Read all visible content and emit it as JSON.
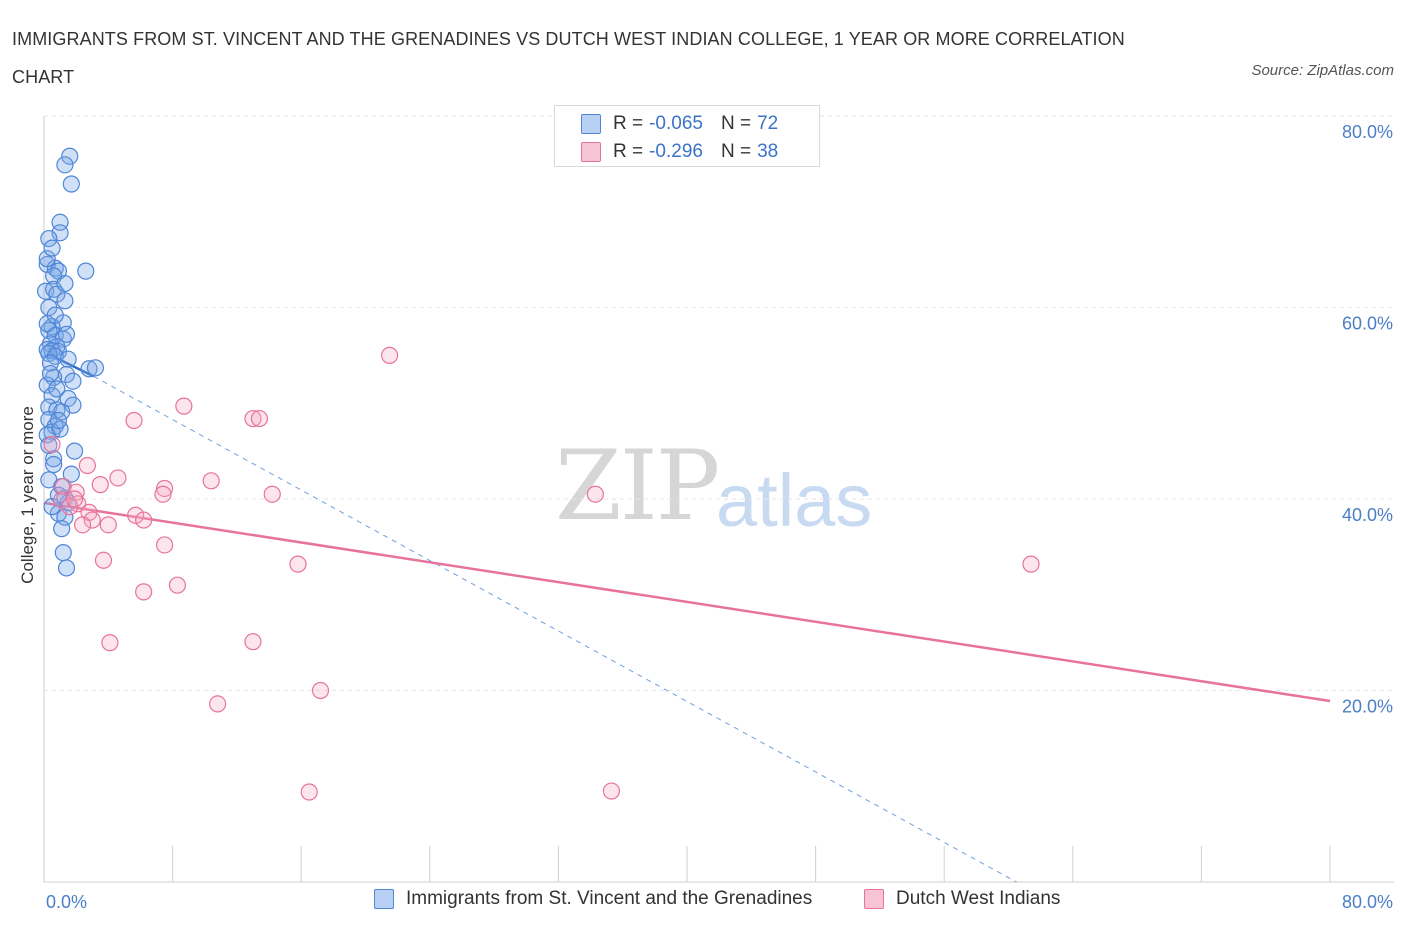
{
  "title": "IMMIGRANTS FROM ST. VINCENT AND THE GRENADINES VS DUTCH WEST INDIAN COLLEGE, 1 YEAR OR MORE CORRELATION CHART",
  "source": "Source: ZipAtlas.com",
  "watermark": {
    "zip": "ZIP",
    "atlas": "atlas"
  },
  "legend": {
    "blue": {
      "r_label": "R =",
      "r_value": "-0.065",
      "n_label": "N =",
      "n_value": "72"
    },
    "pink": {
      "r_label": "R =",
      "r_value": "-0.296",
      "n_label": "N =",
      "n_value": "38"
    }
  },
  "colors": {
    "blue": "#4f86d8",
    "blue_fill": "#b8d0f3",
    "pink": "#e8739a",
    "pink_fill": "#f6c4d4",
    "tick": "#4a7fc8"
  },
  "chart_data": {
    "type": "scatter",
    "title": "IMMIGRANTS FROM ST. VINCENT AND THE GRENADINES VS DUTCH WEST INDIAN COLLEGE, 1 YEAR OR MORE CORRELATION CHART",
    "xlabel": "",
    "ylabel": "College, 1 year or more",
    "xlim": [
      0,
      80
    ],
    "ylim": [
      0,
      80
    ],
    "x_tick_labels": [
      "0.0%",
      "80.0%"
    ],
    "y_tick_labels": [
      "20.0%",
      "40.0%",
      "60.0%",
      "80.0%"
    ],
    "y_ticks": [
      20,
      40,
      60,
      80
    ],
    "grid": true,
    "legend_position": "top-center",
    "series": [
      {
        "name": "Immigrants from St. Vincent and the Grenadines",
        "color": "#4f86d8",
        "R": -0.065,
        "N": 72,
        "trend_solid": [
          [
            0.2,
            55.2
          ],
          [
            3.1,
            52.8
          ]
        ],
        "trend_dashed": [
          [
            3.1,
            52.8
          ],
          [
            60.5,
            0
          ]
        ],
        "points": [
          [
            1.6,
            75.8
          ],
          [
            1.3,
            74.9
          ],
          [
            1.7,
            72.9
          ],
          [
            1.0,
            68.9
          ],
          [
            1.0,
            67.8
          ],
          [
            0.3,
            67.2
          ],
          [
            2.6,
            63.8
          ],
          [
            0.2,
            64.5
          ],
          [
            0.7,
            64.1
          ],
          [
            0.9,
            63.8
          ],
          [
            0.6,
            63.3
          ],
          [
            0.1,
            61.7
          ],
          [
            0.6,
            61.9
          ],
          [
            0.8,
            61.4
          ],
          [
            1.3,
            60.7
          ],
          [
            0.3,
            60.0
          ],
          [
            1.2,
            58.4
          ],
          [
            0.5,
            58.0
          ],
          [
            0.3,
            57.6
          ],
          [
            0.7,
            57.1
          ],
          [
            1.2,
            56.7
          ],
          [
            0.4,
            56.2
          ],
          [
            0.8,
            55.9
          ],
          [
            0.2,
            55.6
          ],
          [
            0.5,
            55.5
          ],
          [
            0.9,
            55.4
          ],
          [
            0.3,
            55.2
          ],
          [
            0.7,
            54.9
          ],
          [
            1.5,
            54.6
          ],
          [
            0.4,
            54.2
          ],
          [
            2.8,
            53.6
          ],
          [
            3.2,
            53.7
          ],
          [
            1.4,
            53.0
          ],
          [
            0.6,
            52.7
          ],
          [
            1.8,
            52.3
          ],
          [
            0.2,
            51.9
          ],
          [
            0.5,
            50.8
          ],
          [
            1.5,
            50.5
          ],
          [
            1.8,
            49.8
          ],
          [
            0.3,
            49.6
          ],
          [
            0.8,
            49.3
          ],
          [
            1.1,
            49.1
          ],
          [
            0.3,
            48.3
          ],
          [
            0.7,
            47.6
          ],
          [
            0.5,
            47.0
          ],
          [
            0.2,
            46.7
          ],
          [
            1.9,
            45.0
          ],
          [
            0.6,
            44.2
          ],
          [
            1.7,
            42.6
          ],
          [
            0.3,
            42.0
          ],
          [
            1.3,
            40.1
          ],
          [
            1.5,
            39.6
          ],
          [
            0.9,
            38.5
          ],
          [
            1.3,
            38.1
          ],
          [
            1.1,
            36.9
          ],
          [
            1.2,
            34.4
          ],
          [
            1.4,
            32.8
          ],
          [
            0.2,
            58.3
          ],
          [
            0.4,
            53.1
          ],
          [
            0.8,
            51.5
          ],
          [
            1.0,
            47.3
          ],
          [
            0.3,
            45.6
          ],
          [
            0.6,
            43.6
          ],
          [
            1.1,
            41.3
          ],
          [
            0.9,
            40.4
          ],
          [
            0.5,
            39.2
          ],
          [
            1.3,
            62.5
          ],
          [
            0.2,
            65.1
          ],
          [
            0.5,
            66.2
          ],
          [
            1.4,
            57.2
          ],
          [
            0.7,
            59.2
          ],
          [
            0.9,
            48.2
          ]
        ]
      },
      {
        "name": "Dutch West Indians",
        "color": "#e8739a",
        "R": -0.296,
        "N": 38,
        "trend_solid": [
          [
            0.0,
            39.6
          ],
          [
            80.0,
            18.9
          ]
        ],
        "points": [
          [
            21.5,
            55.0
          ],
          [
            8.7,
            49.7
          ],
          [
            5.6,
            48.2
          ],
          [
            13.0,
            48.4
          ],
          [
            13.4,
            48.4
          ],
          [
            0.5,
            45.7
          ],
          [
            2.7,
            43.5
          ],
          [
            4.6,
            42.2
          ],
          [
            10.4,
            41.9
          ],
          [
            3.5,
            41.5
          ],
          [
            1.2,
            41.3
          ],
          [
            7.5,
            41.1
          ],
          [
            2.0,
            40.7
          ],
          [
            7.4,
            40.5
          ],
          [
            14.2,
            40.5
          ],
          [
            34.3,
            40.5
          ],
          [
            1.1,
            39.9
          ],
          [
            2.1,
            39.5
          ],
          [
            1.6,
            39.2
          ],
          [
            2.8,
            38.6
          ],
          [
            5.7,
            38.3
          ],
          [
            3.0,
            37.8
          ],
          [
            6.2,
            37.8
          ],
          [
            4.0,
            37.3
          ],
          [
            2.4,
            37.3
          ],
          [
            7.5,
            35.2
          ],
          [
            3.7,
            33.6
          ],
          [
            15.8,
            33.2
          ],
          [
            61.4,
            33.2
          ],
          [
            8.3,
            31.0
          ],
          [
            6.2,
            30.3
          ],
          [
            4.1,
            25.0
          ],
          [
            13.0,
            25.1
          ],
          [
            17.2,
            20.0
          ],
          [
            10.8,
            18.6
          ],
          [
            16.5,
            9.4
          ],
          [
            35.3,
            9.5
          ],
          [
            1.9,
            40.0
          ]
        ]
      }
    ]
  }
}
